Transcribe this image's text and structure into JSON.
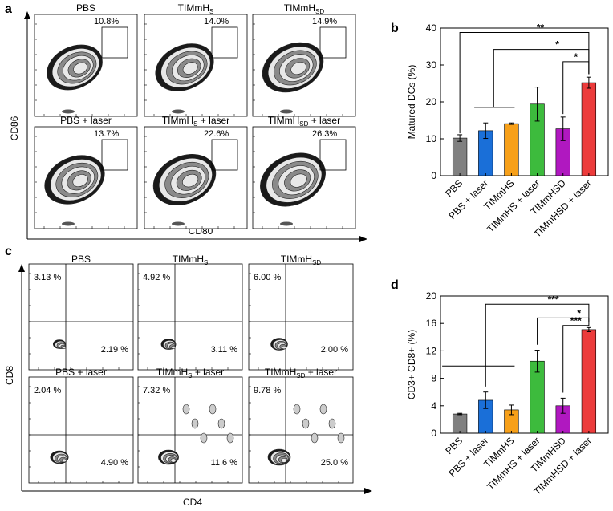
{
  "figure": {
    "panel_labels": [
      "a",
      "b",
      "c",
      "d"
    ]
  },
  "panel_a": {
    "xlabel": "CD80",
    "ylabel": "CD86",
    "plots": [
      {
        "title": "PBS",
        "gate_pct": "10.8%"
      },
      {
        "title": "TIMmH",
        "sub": "S",
        "suffix": "",
        "gate_pct": "14.0%"
      },
      {
        "title": "TIMmH",
        "sub": "SD",
        "suffix": "",
        "gate_pct": "14.9%"
      },
      {
        "title": "PBS + laser",
        "gate_pct": "13.7%"
      },
      {
        "title": "TIMmH",
        "sub": "S",
        "suffix": " + laser",
        "gate_pct": "22.6%"
      },
      {
        "title": "TIMmH",
        "sub": "SD",
        "suffix": " + laser",
        "gate_pct": "26.3%"
      }
    ]
  },
  "panel_c": {
    "xlabel": "CD4",
    "ylabel": "CD8",
    "plots": [
      {
        "title": "PBS",
        "q_ul": "3.13 %",
        "q_lr": "2.19 %"
      },
      {
        "title": "TIMmH",
        "sub": "S",
        "suffix": "",
        "q_ul": "4.92 %",
        "q_lr": "3.11 %"
      },
      {
        "title": "TIMmH",
        "sub": "SD",
        "suffix": "",
        "q_ul": "6.00 %",
        "q_lr": "2.00 %"
      },
      {
        "title": "PBS + laser",
        "q_ul": "2.04 %",
        "q_lr": "4.90 %"
      },
      {
        "title": "TIMmH",
        "sub": "S",
        "suffix": " + laser",
        "q_ul": "7.32 %",
        "q_lr": "11.6 %"
      },
      {
        "title": "TIMmH",
        "sub": "SD",
        "suffix": " + laser",
        "q_ul": "9.78 %",
        "q_lr": "25.0 %"
      }
    ]
  },
  "chart_data": [
    {
      "panel": "b",
      "type": "bar",
      "categories": [
        "PBS",
        "PBS + laser",
        "TIMmHS",
        "TIMmHS + laser",
        "TIMmHSD",
        "TIMmHSD + laser"
      ],
      "values": [
        10.2,
        12.2,
        14.1,
        19.4,
        12.7,
        25.2
      ],
      "errors": [
        0.9,
        2.1,
        0.2,
        4.6,
        3.2,
        1.5
      ],
      "colors": [
        "#808080",
        "#1a6fd8",
        "#f7a019",
        "#3dbb3d",
        "#b018c0",
        "#ec3b3b"
      ],
      "ylabel": "Matured DCs (%)",
      "xlabel": "",
      "ylim": [
        0,
        40
      ],
      "yticks": [
        0,
        10,
        20,
        30,
        40
      ],
      "significance": [
        {
          "from": 0,
          "to": 5,
          "label": "**"
        },
        {
          "from": 2,
          "to": 5,
          "label": "*"
        },
        {
          "from": 4,
          "to": 5,
          "label": "*"
        }
      ],
      "group_line": [
        0,
        2
      ]
    },
    {
      "panel": "d",
      "type": "bar",
      "categories": [
        "PBS",
        "PBS + laser",
        "TIMmHS",
        "TIMmHS + laser",
        "TIMmHSD",
        "TIMmHSD + laser"
      ],
      "values": [
        2.8,
        4.8,
        3.4,
        10.5,
        4.0,
        15.1
      ],
      "errors": [
        0.1,
        1.2,
        0.7,
        1.6,
        1.1,
        0.3
      ],
      "colors": [
        "#808080",
        "#1a6fd8",
        "#f7a019",
        "#3dbb3d",
        "#b018c0",
        "#ec3b3b"
      ],
      "ylabel": "CD3+ CD8+ (%)",
      "xlabel": "",
      "ylim": [
        0,
        20
      ],
      "yticks": [
        0,
        4,
        8,
        12,
        16,
        20
      ],
      "significance": [
        {
          "from": 1,
          "to": 5,
          "label": "***"
        },
        {
          "from": 3,
          "to": 5,
          "label": "*"
        },
        {
          "from": 4,
          "to": 5,
          "label": "***"
        }
      ],
      "group_line": [
        0,
        2
      ]
    }
  ]
}
